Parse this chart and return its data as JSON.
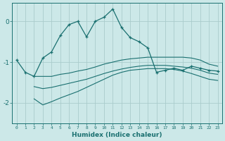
{
  "xlabel": "Humidex (Indice chaleur)",
  "background_color": "#cce8e8",
  "grid_color": "#aacccc",
  "line_color": "#1a7070",
  "xlim": [
    -0.5,
    23.5
  ],
  "ylim": [
    -2.5,
    0.45
  ],
  "yticks": [
    0,
    -1,
    -2
  ],
  "xticks": [
    0,
    1,
    2,
    3,
    4,
    5,
    6,
    7,
    8,
    9,
    10,
    11,
    12,
    13,
    14,
    15,
    16,
    17,
    18,
    19,
    20,
    21,
    22,
    23
  ],
  "main_line_x": [
    0,
    1,
    2,
    3,
    4,
    5,
    6,
    7,
    8,
    9,
    10,
    11,
    12,
    13,
    14,
    15,
    16,
    17,
    18,
    19,
    20,
    21,
    22,
    23
  ],
  "main_line_y": [
    -0.95,
    -1.25,
    -1.35,
    -0.9,
    -0.75,
    -0.35,
    -0.08,
    0.0,
    -0.38,
    0.0,
    0.1,
    0.3,
    -0.15,
    -0.4,
    -0.5,
    -0.65,
    -1.25,
    -1.2,
    -1.15,
    -1.2,
    -1.1,
    -1.15,
    -1.2,
    -1.22
  ],
  "band_upper_x": [
    2,
    3,
    4,
    5,
    6,
    7,
    8,
    9,
    10,
    11,
    12,
    13,
    14,
    15,
    16,
    17,
    18,
    19,
    20,
    21,
    22,
    23
  ],
  "band_upper_y": [
    -1.35,
    -1.35,
    -1.35,
    -1.3,
    -1.27,
    -1.22,
    -1.18,
    -1.12,
    -1.05,
    -1.0,
    -0.95,
    -0.92,
    -0.9,
    -0.88,
    -0.88,
    -0.88,
    -0.88,
    -0.88,
    -0.9,
    -0.95,
    -1.05,
    -1.1
  ],
  "band_mid_x": [
    2,
    3,
    4,
    5,
    6,
    7,
    8,
    9,
    10,
    11,
    12,
    13,
    14,
    15,
    16,
    17,
    18,
    19,
    20,
    21,
    22,
    23
  ],
  "band_mid_y": [
    -1.6,
    -1.65,
    -1.62,
    -1.57,
    -1.52,
    -1.47,
    -1.42,
    -1.35,
    -1.28,
    -1.22,
    -1.17,
    -1.13,
    -1.1,
    -1.08,
    -1.08,
    -1.08,
    -1.1,
    -1.12,
    -1.15,
    -1.2,
    -1.27,
    -1.3
  ],
  "band_lower_x": [
    2,
    3,
    4,
    5,
    6,
    7,
    8,
    9,
    10,
    11,
    12,
    13,
    14,
    15,
    16,
    17,
    18,
    19,
    20,
    21,
    22,
    23
  ],
  "band_lower_y": [
    -1.9,
    -2.05,
    -1.97,
    -1.88,
    -1.8,
    -1.72,
    -1.62,
    -1.52,
    -1.42,
    -1.32,
    -1.25,
    -1.2,
    -1.18,
    -1.16,
    -1.16,
    -1.16,
    -1.18,
    -1.22,
    -1.28,
    -1.35,
    -1.42,
    -1.45
  ]
}
